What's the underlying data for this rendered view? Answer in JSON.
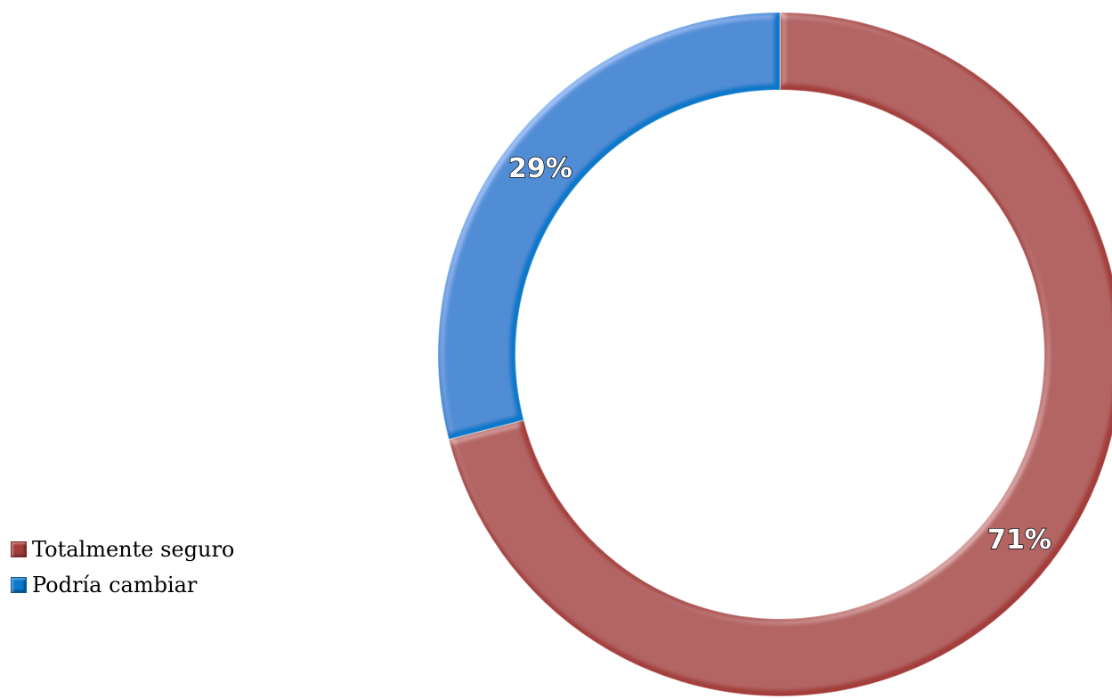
{
  "chart_data": {
    "type": "pie",
    "variant": "donut",
    "title": "",
    "categories": [
      "Totalmente seguro",
      "Podría cambiar"
    ],
    "values": [
      71,
      29
    ],
    "data_labels": [
      "71%",
      "29%"
    ],
    "colors": [
      "#a33e3b",
      "#0878c9"
    ],
    "legend_position": "left-bottom",
    "start_angle": "12 o'clock",
    "direction": "clockwise"
  }
}
